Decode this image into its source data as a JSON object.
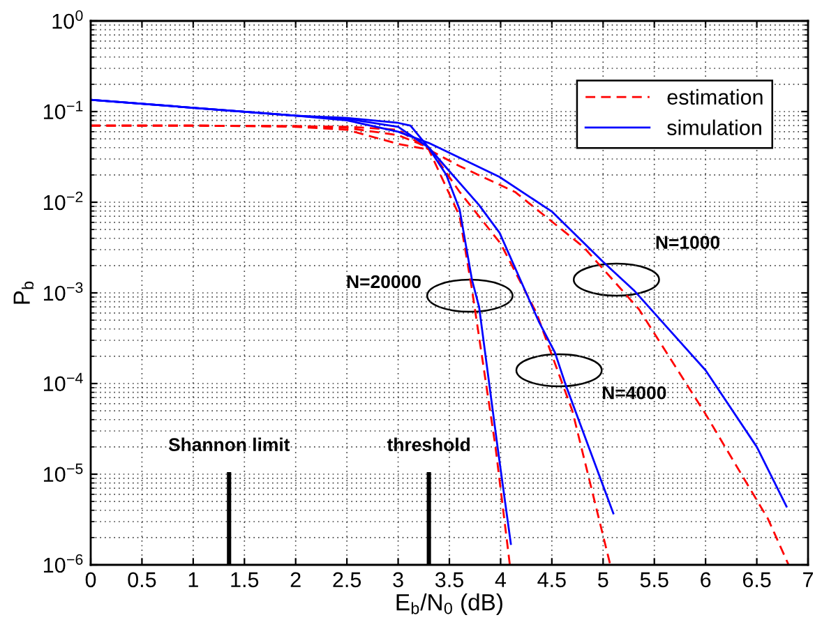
{
  "chart_data": {
    "type": "line",
    "xlabel": "E$_{b}$/N$_{0}$ (dB)",
    "ylabel": "P$_{b}$",
    "log": "y",
    "grid": true,
    "legend": "top right",
    "xlim": [
      0,
      7
    ],
    "xticks": [
      0,
      0.5,
      1,
      1.5,
      2,
      2.5,
      3,
      3.5,
      4,
      4.5,
      5,
      5.5,
      6,
      6.5,
      7
    ],
    "ylim": [
      1e-06,
      1
    ],
    "yticks": [
      {
        "value": 1e-06,
        "label": "10$^{−6}$"
      },
      {
        "value": 1e-05,
        "label": "10$^{−5}$"
      },
      {
        "value": 0.0001,
        "label": "10$^{−4}$"
      },
      {
        "value": 0.001,
        "label": "10$^{−3}$"
      },
      {
        "value": 0.01,
        "label": "10$^{−2}$"
      },
      {
        "value": 0.1,
        "label": "10$^{−1}$"
      },
      {
        "value": 1,
        "label": "10$^{0}$"
      }
    ],
    "series": [
      {
        "name": "estimation",
        "color": "#ff0000",
        "line_style": "dashed",
        "x": [
          0,
          1,
          2,
          2.5,
          3,
          3.3,
          3.6,
          3.72,
          3.95,
          4.09
        ],
        "values": [
          0.07,
          0.07,
          0.069,
          0.068,
          0.063,
          0.038,
          0.007,
          0.0011,
          2e-05,
          1e-06
        ]
      },
      {
        "color": "#ff0000",
        "line_style": "dashed",
        "x": [
          0,
          1,
          2,
          2.5,
          3,
          3.3,
          3.6,
          4.0,
          4.35,
          4.7,
          5.07
        ],
        "values": [
          0.07,
          0.07,
          0.069,
          0.066,
          0.055,
          0.04,
          0.013,
          0.0035,
          0.0006,
          5e-05,
          1e-06
        ]
      },
      {
        "color": "#ff0000",
        "line_style": "dashed",
        "x": [
          0,
          1,
          2,
          2.5,
          3,
          3.3,
          3.6,
          4.14,
          4.81,
          5.35,
          6.0,
          6.61,
          6.81
        ],
        "values": [
          0.07,
          0.07,
          0.068,
          0.063,
          0.044,
          0.038,
          0.025,
          0.013,
          0.0032,
          0.00066,
          4.6e-05,
          3.2e-06,
          1e-06
        ]
      },
      {
        "name": "simulation",
        "color": "#0000ff",
        "line_style": "solid",
        "x": [
          0,
          1,
          2,
          2.5,
          3,
          3.12,
          3.29,
          3.47,
          3.6,
          3.72,
          3.79,
          3.97,
          4.1
        ],
        "values": [
          0.135,
          0.11,
          0.09,
          0.085,
          0.075,
          0.07,
          0.041,
          0.02,
          0.0083,
          0.0014,
          0.0007,
          2e-05,
          1.7e-06
        ]
      },
      {
        "color": "#0000ff",
        "line_style": "solid",
        "x": [
          0,
          1,
          2,
          2.5,
          3,
          3.3,
          3.5,
          3.79,
          3.99,
          4.37,
          4.53,
          4.64,
          5.1
        ],
        "values": [
          0.135,
          0.11,
          0.09,
          0.083,
          0.068,
          0.04,
          0.022,
          0.0093,
          0.0046,
          0.00049,
          0.00022,
          9.3e-05,
          3.7e-06
        ]
      },
      {
        "color": "#0000ff",
        "line_style": "solid",
        "x": [
          0,
          1,
          2,
          2.5,
          3,
          3.3,
          3.99,
          4.5,
          5.0,
          5.3,
          6.0,
          6.5,
          6.79
        ],
        "values": [
          0.135,
          0.11,
          0.09,
          0.08,
          0.06,
          0.045,
          0.019,
          0.0079,
          0.0022,
          0.00107,
          0.00014,
          2e-05,
          4.4e-06
        ]
      },
      {
        "color": "#000000",
        "line_style": "solid",
        "x": [
          1.35,
          1.35
        ],
        "values": [
          1e-06,
          1e-05
        ]
      },
      {
        "color": "#000000",
        "line_style": "solid",
        "x": [
          3.3,
          3.3
        ],
        "values": [
          1e-06,
          1e-05
        ]
      }
    ],
    "annotations": [
      {
        "text": "Shannon limit",
        "x": 1.35,
        "y": 1e-05
      },
      {
        "text": "threshold",
        "x": 3.3,
        "y": 1e-05
      },
      {
        "text": "N=20000",
        "x": 3.7,
        "y": 0.00093
      },
      {
        "text": "N=1000",
        "x": 5.13,
        "y": 0.0014
      },
      {
        "text": "N=4000",
        "x": 4.57,
        "y": 0.00014
      }
    ]
  }
}
